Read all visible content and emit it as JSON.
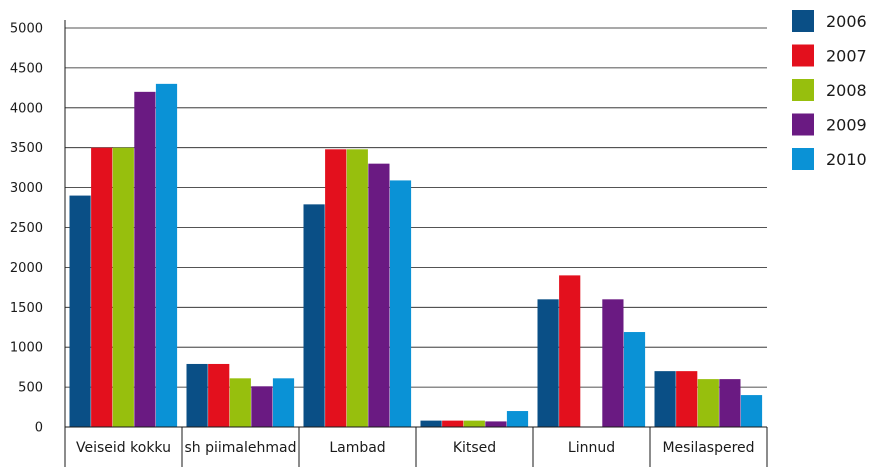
{
  "chart_data": {
    "type": "bar",
    "categories": [
      "Veiseid kokku",
      "sh piimalehmad",
      "Lambad",
      "Kitsed",
      "Linnud",
      "Mesilaspered"
    ],
    "series": [
      {
        "name": "2006",
        "color": "#0a4f86",
        "values": [
          2900,
          790,
          2790,
          80,
          1600,
          700
        ]
      },
      {
        "name": "2007",
        "color": "#e3101d",
        "values": [
          3500,
          790,
          3480,
          80,
          1900,
          700
        ]
      },
      {
        "name": "2008",
        "color": "#97bf0d",
        "values": [
          3500,
          610,
          3480,
          80,
          0,
          600
        ]
      },
      {
        "name": "2009",
        "color": "#6a1a82",
        "values": [
          4200,
          510,
          3300,
          70,
          1600,
          600
        ]
      },
      {
        "name": "2010",
        "color": "#0a92d6",
        "values": [
          4300,
          610,
          3090,
          200,
          1190,
          400
        ]
      }
    ],
    "y_ticks": [
      "0",
      "500",
      "1000",
      "1500",
      "2000",
      "2500",
      "3000",
      "3500",
      "4000",
      "4500",
      "5000"
    ],
    "ylim": [
      0,
      5000
    ],
    "grid": true,
    "legend_position": "top-right"
  }
}
